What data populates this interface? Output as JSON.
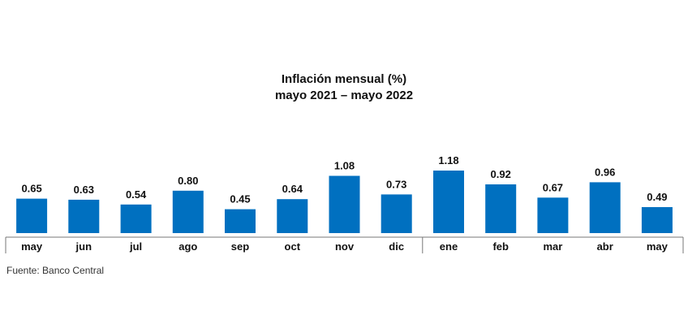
{
  "chart_data": {
    "type": "bar",
    "title": "Inflación mensual (%)",
    "subtitle": "mayo 2021 – mayo 2022",
    "xlabel": "",
    "ylabel": "",
    "categories": [
      "may",
      "jun",
      "jul",
      "ago",
      "sep",
      "oct",
      "nov",
      "dic",
      "ene",
      "feb",
      "mar",
      "abr",
      "may"
    ],
    "values": [
      0.65,
      0.63,
      0.54,
      0.8,
      0.45,
      0.64,
      1.08,
      0.73,
      1.18,
      0.92,
      0.67,
      0.96,
      0.49
    ],
    "value_labels": [
      "0.65",
      "0.63",
      "0.54",
      "0.80",
      "0.45",
      "0.64",
      "1.08",
      "0.73",
      "1.18",
      "0.92",
      "0.67",
      "0.96",
      "0.49"
    ],
    "year_break_after_index": 7,
    "ylim": [
      0,
      1.18
    ],
    "grid": false,
    "legend": "none",
    "bar_color": "#0070C0"
  },
  "source": "Fuente: Banco Central"
}
